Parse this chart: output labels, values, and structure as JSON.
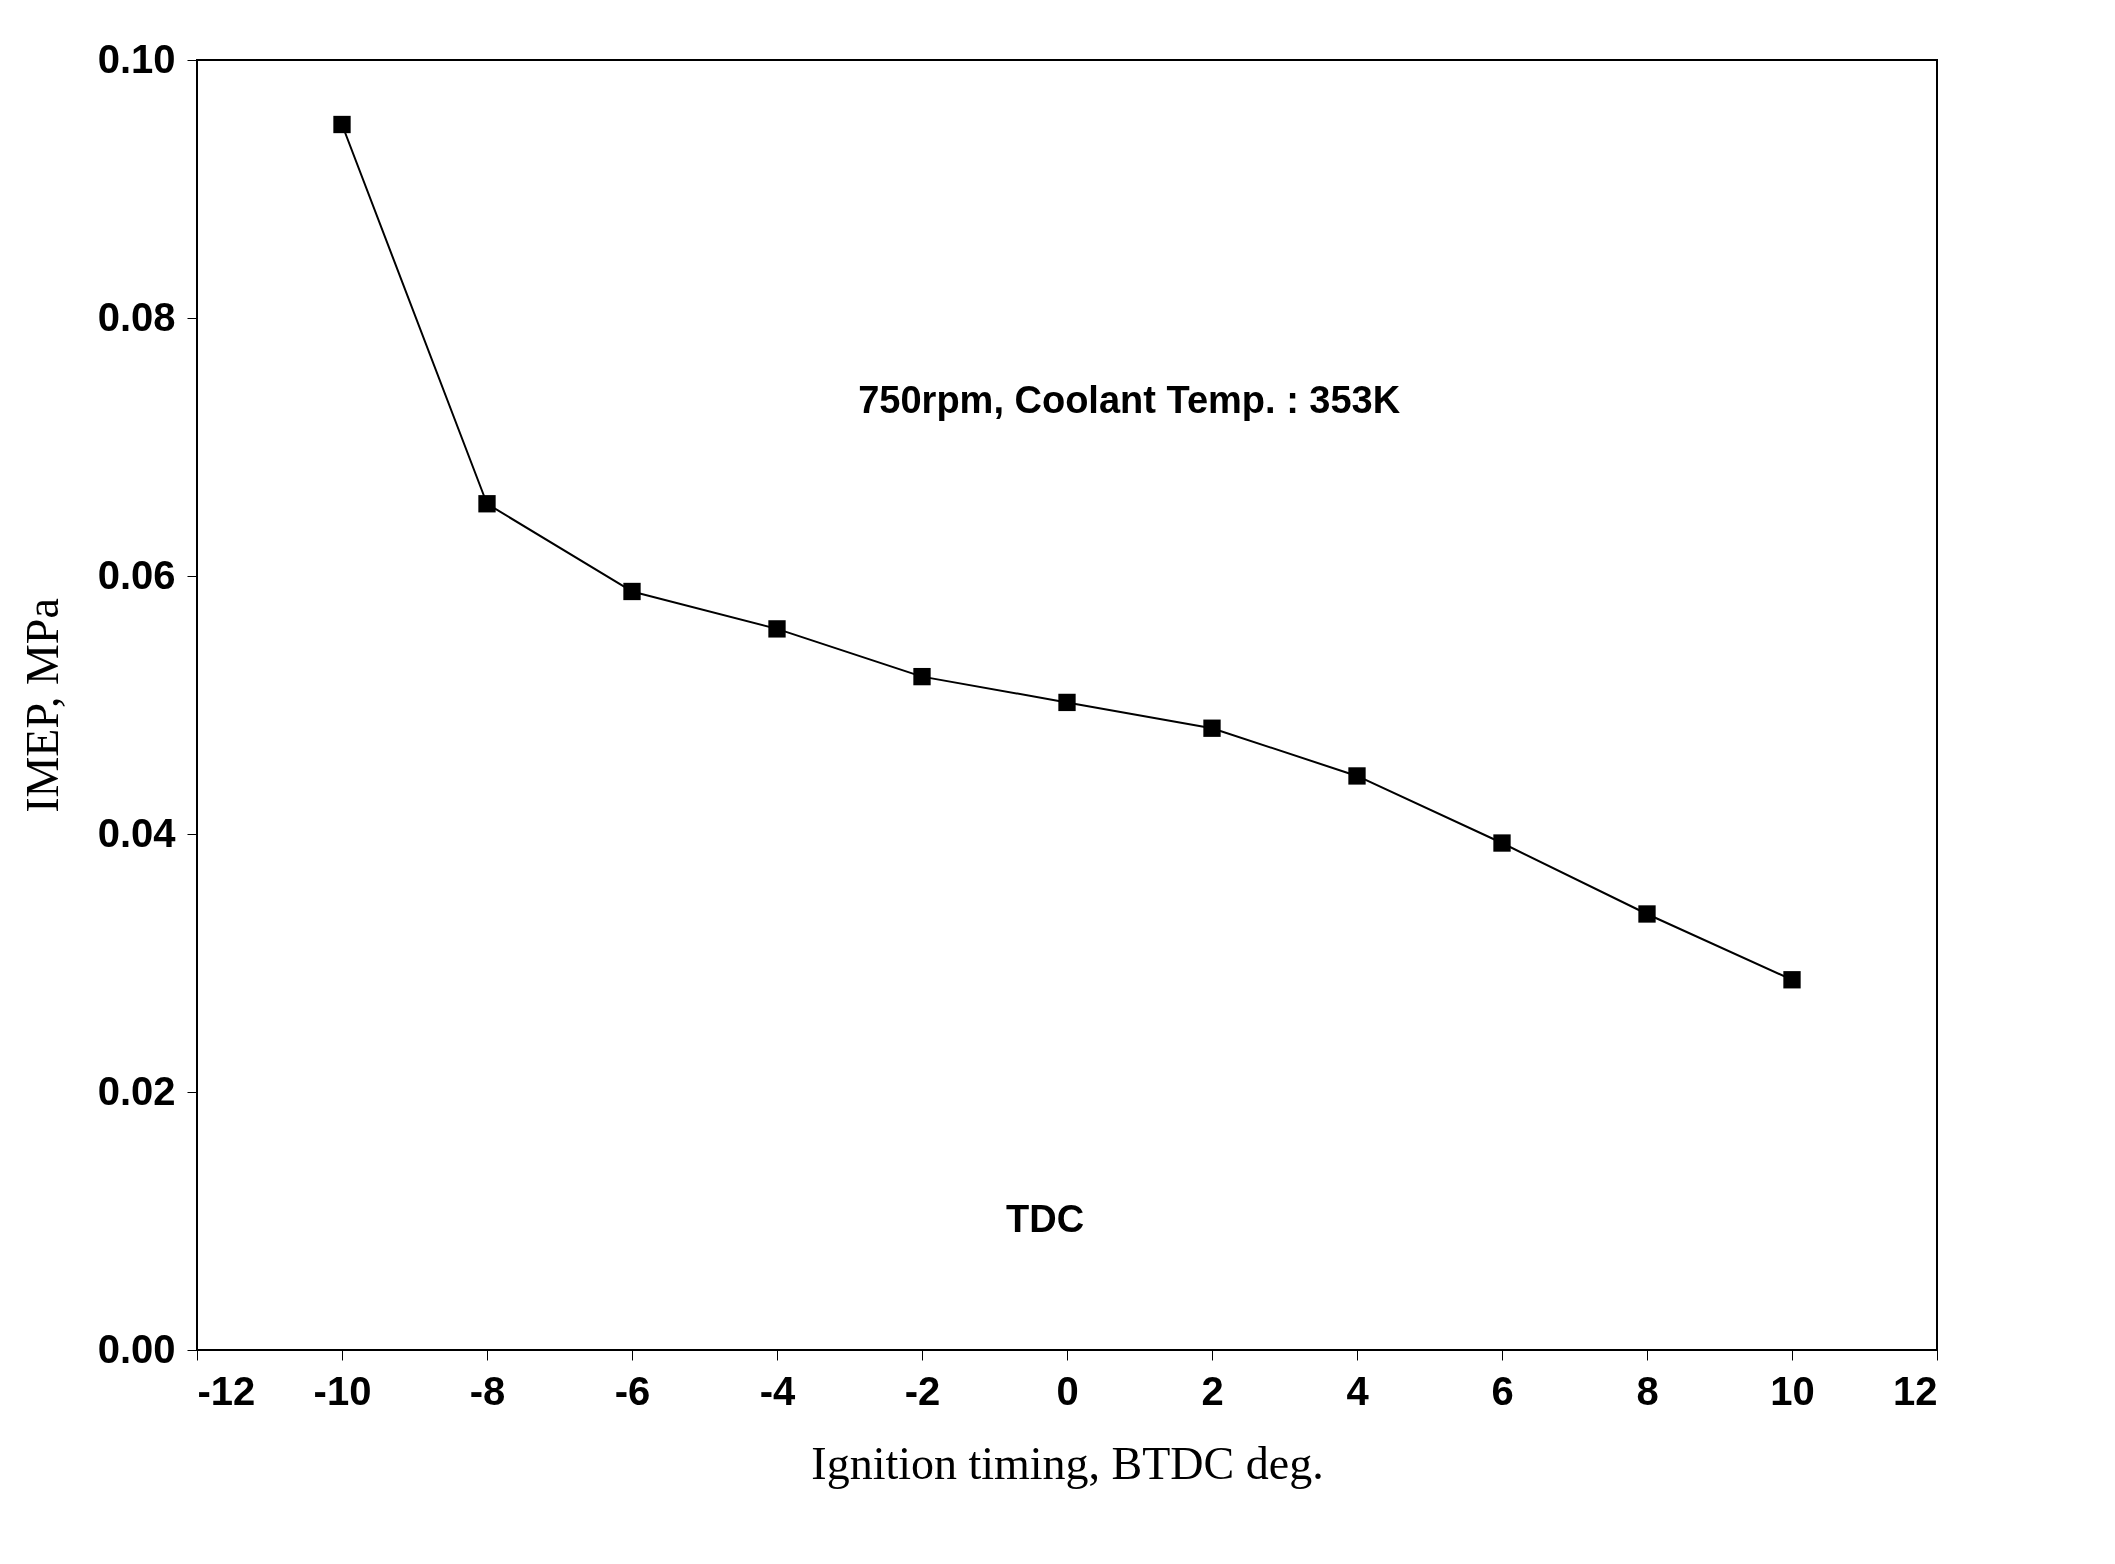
{
  "chart_data": {
    "type": "line",
    "xlabel": "Ignition timing, BTDC deg.",
    "ylabel": "IMEP, MPa",
    "x": [
      -10,
      -8,
      -6,
      -4,
      -2,
      0,
      2,
      4,
      6,
      8,
      10
    ],
    "series": [
      {
        "color": "#000000",
        "values": [
          0.095,
          0.0656,
          0.0588,
          0.0559,
          0.0522,
          0.0502,
          0.0482,
          0.0445,
          0.0393,
          0.0338,
          0.0287
        ]
      }
    ],
    "xlim": [
      -12,
      12
    ],
    "xticks": [
      -12,
      -10,
      -8,
      -6,
      -4,
      -2,
      0,
      2,
      4,
      6,
      8,
      10,
      12
    ],
    "ylim": [
      0,
      0.1
    ],
    "yticks": [
      {
        "value": 0,
        "label": "0.00"
      },
      {
        "value": 0.02,
        "label": "0.02"
      },
      {
        "value": 0.04,
        "label": "0.04"
      },
      {
        "value": 0.06,
        "label": "0.06"
      },
      {
        "value": 0.08,
        "label": "0.08"
      },
      {
        "value": 0.1,
        "label": "0.10"
      }
    ],
    "annotations": [
      "750rpm, Coolant Temp. : 353K",
      "TDC"
    ],
    "marker": "square",
    "line_style": "solid",
    "grid": false
  }
}
